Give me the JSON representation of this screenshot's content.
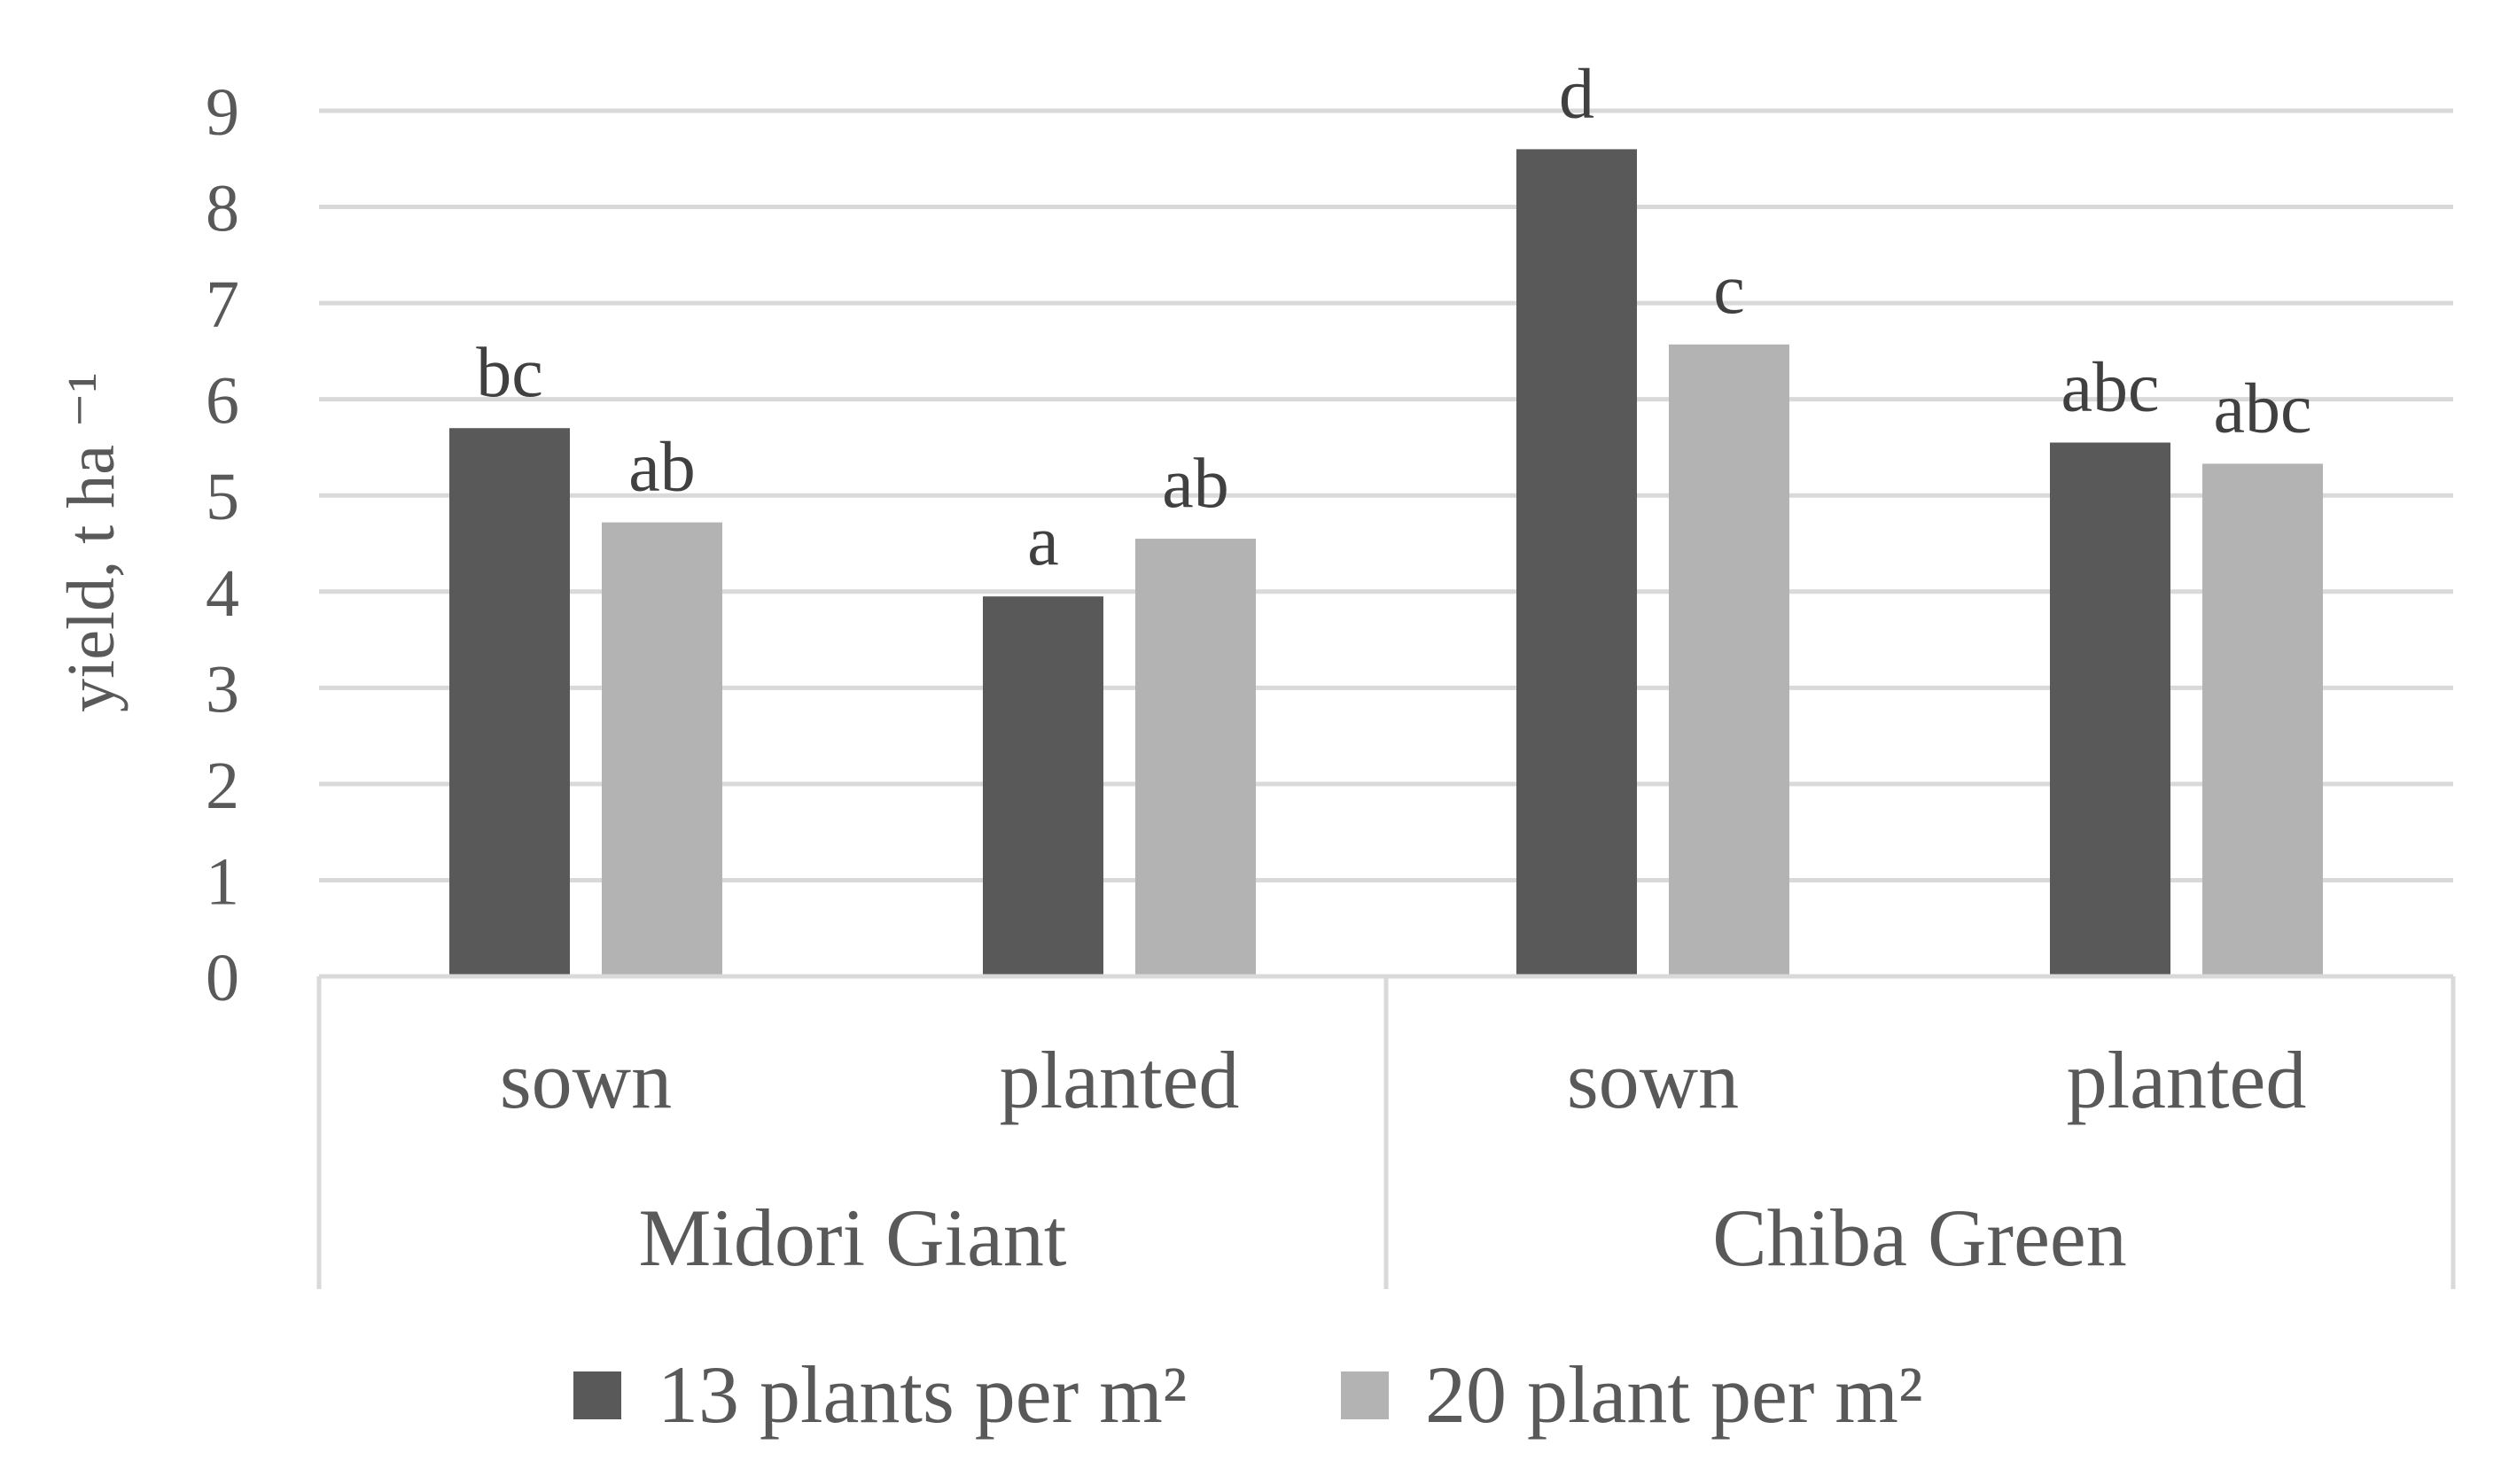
{
  "chart_data": {
    "type": "bar",
    "title": "",
    "xlabel": "",
    "ylabel": "yield, t ha ⁻¹",
    "ylim": [
      0,
      9
    ],
    "yticks": [
      0,
      1,
      2,
      3,
      4,
      5,
      6,
      7,
      8,
      9
    ],
    "grid": true,
    "legend_position": "bottom",
    "groups": [
      {
        "name": "Midori Giant",
        "categories": [
          "sown",
          "planted"
        ]
      },
      {
        "name": "Chiba Green",
        "categories": [
          "sown",
          "planted"
        ]
      }
    ],
    "categories": [
      "sown",
      "planted",
      "sown",
      "planted"
    ],
    "series": [
      {
        "name": "13 plants per m²",
        "color": "#595959",
        "values": [
          5.7,
          3.95,
          8.6,
          5.55
        ],
        "labels": [
          "bc",
          "a",
          "d",
          "abc"
        ]
      },
      {
        "name": "20 plant per m²",
        "color": "#b3b3b3",
        "values": [
          4.72,
          4.55,
          6.57,
          5.33
        ],
        "labels": [
          "ab",
          "ab",
          "c",
          "abc"
        ]
      }
    ]
  }
}
